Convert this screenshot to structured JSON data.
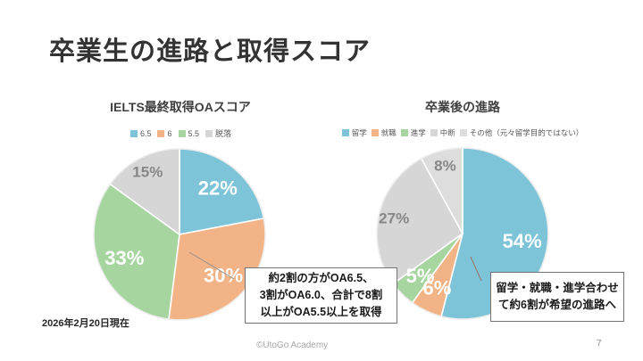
{
  "slide": {
    "title": "卒業生の進路と取得スコア",
    "date_note": "2026年2月20日現在",
    "footer": "©UtoGo Academy",
    "page_number": "7"
  },
  "callouts": [
    {
      "text": "約2割の方がOA6.5、\n3割がOA6.0、合計で8割\n以上がOA5.5以上を取得"
    },
    {
      "text": "留学・就職・進学合わせ\nて約6割が希望の進路へ"
    }
  ],
  "chart_data": [
    {
      "type": "pie",
      "title": "IELTS最終取得OAスコア",
      "legend_position": "top",
      "categories": [
        "6.5",
        "6",
        "5.5",
        "脱落"
      ],
      "values": [
        22,
        30,
        33,
        15
      ],
      "labels": [
        "22%",
        "30%",
        "33%",
        "15%"
      ],
      "colors": [
        "#7EC4D8",
        "#F2B486",
        "#A6D5A0",
        "#D6D6D6"
      ],
      "label_styles": [
        "white",
        "white",
        "white",
        "gray"
      ],
      "start_angle_deg": 0,
      "direction": "clockwise"
    },
    {
      "type": "pie",
      "title": "卒業後の進路",
      "legend_position": "top",
      "categories": [
        "留学",
        "就職",
        "進学",
        "中断",
        "その他（元々留学目的ではない）"
      ],
      "values": [
        54,
        6,
        5,
        27,
        8
      ],
      "labels": [
        "54%",
        "6%",
        "5%",
        "27%",
        "8%"
      ],
      "colors": [
        "#7EC4D8",
        "#F2B486",
        "#A6D5A0",
        "#D6D6D6",
        "#DDDDDD"
      ],
      "label_styles": [
        "white",
        "white",
        "white",
        "gray",
        "gray"
      ],
      "start_angle_deg": 0,
      "direction": "clockwise"
    }
  ]
}
